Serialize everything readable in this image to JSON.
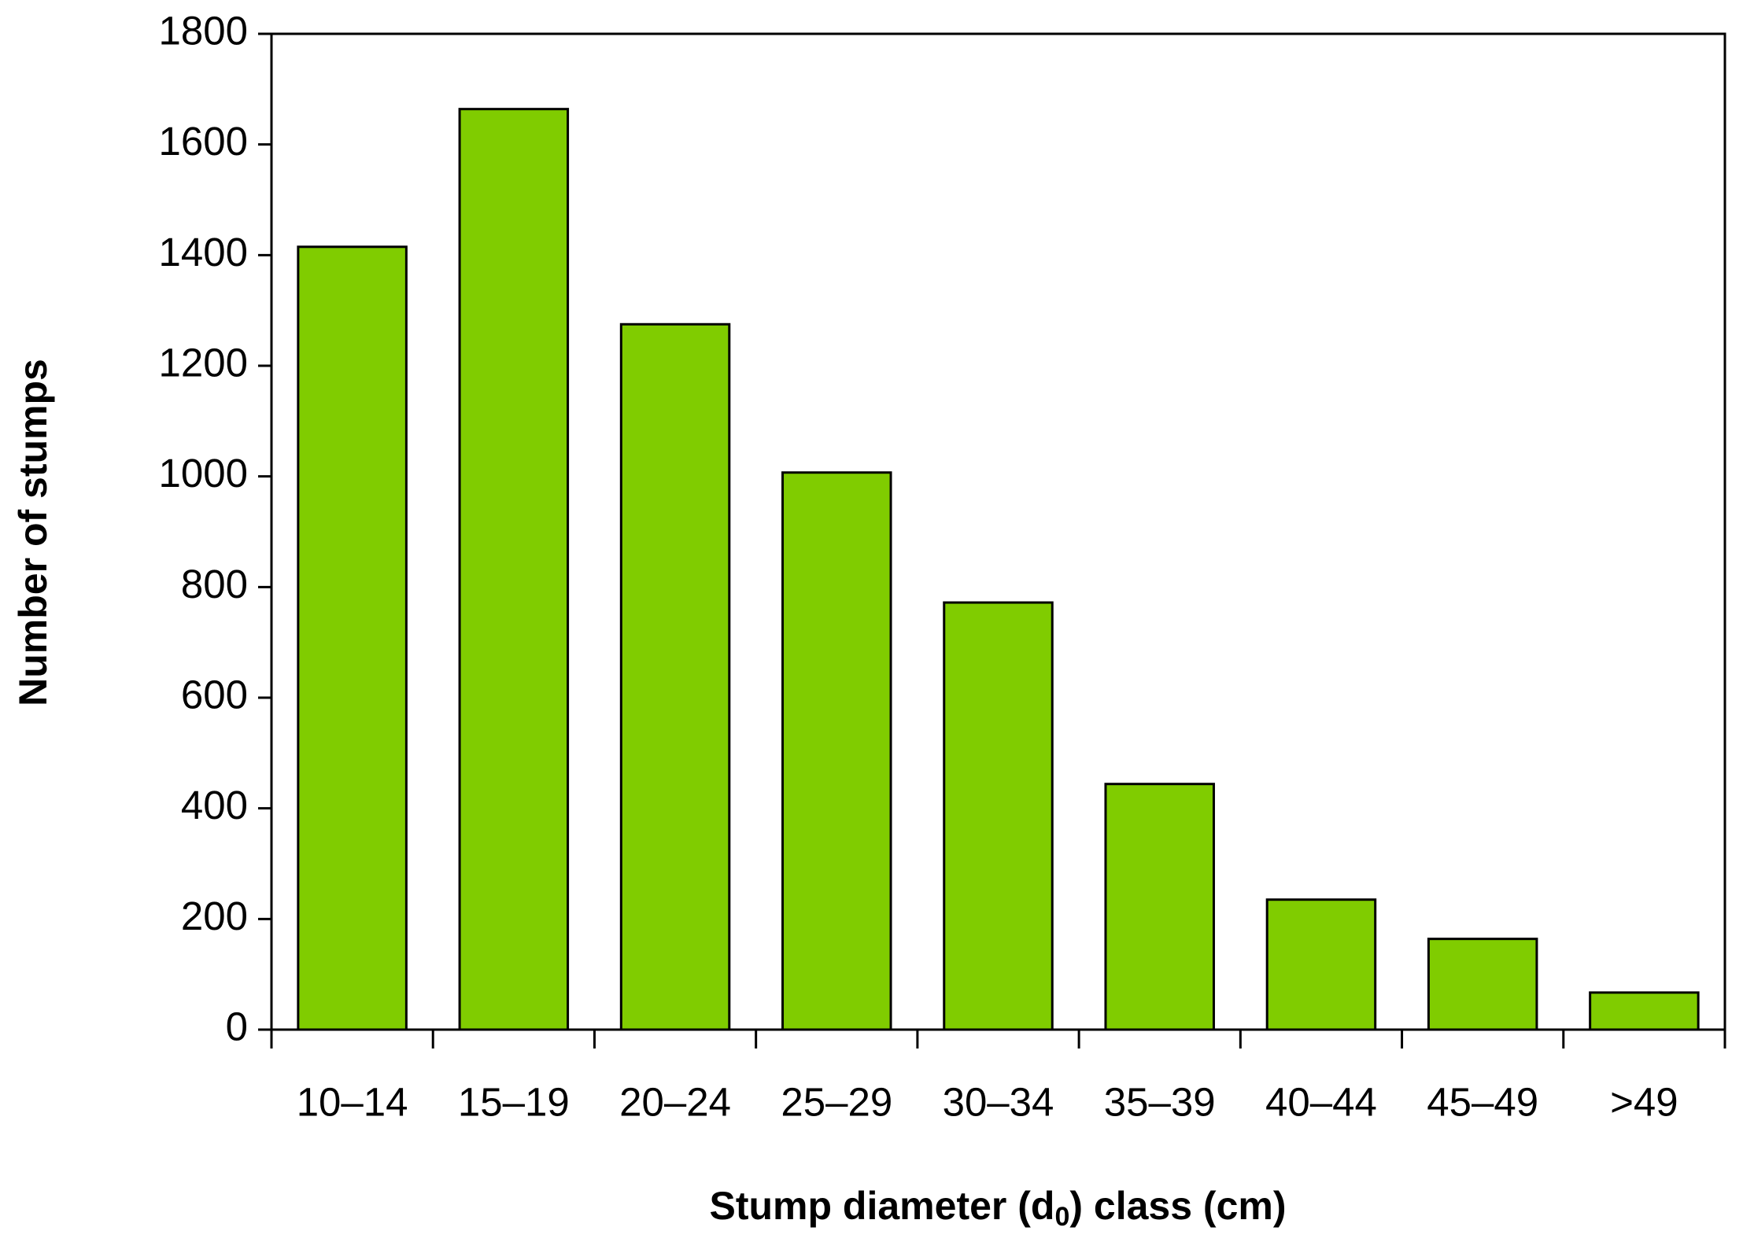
{
  "chart_data": {
    "type": "bar",
    "x_label_parts": [
      "Stump diameter (d",
      "0",
      ") class (cm)"
    ],
    "y_label": "Number of stumps",
    "categories": [
      "10–14",
      "15–19",
      "20–24",
      "25–29",
      "30–34",
      "35–39",
      "40–44",
      "45–49",
      ">49"
    ],
    "values": [
      1415,
      1664,
      1275,
      1007,
      772,
      444,
      235,
      164,
      67
    ],
    "color": "#80cc00",
    "ylim": [
      0,
      1800
    ],
    "yticks": [
      0,
      200,
      400,
      600,
      800,
      1000,
      1200,
      1400,
      1600,
      1800
    ],
    "grid": false
  }
}
